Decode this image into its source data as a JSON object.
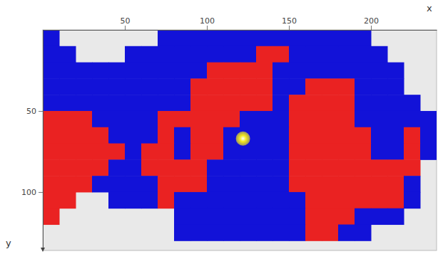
{
  "chart_data": {
    "type": "heatmap",
    "x_label": "x",
    "y_label": "y",
    "x": [
      5,
      15,
      25,
      35,
      45,
      55,
      65,
      75,
      85,
      95,
      105,
      115,
      125,
      135,
      145,
      155,
      165,
      175,
      185,
      195,
      205,
      215,
      225,
      235
    ],
    "y": [
      5,
      15,
      25,
      35,
      45,
      55,
      65,
      75,
      85,
      95,
      105,
      115,
      125
    ],
    "cells": [
      [
        0,
        null,
        null,
        null,
        null,
        null,
        null,
        0,
        0,
        0,
        0,
        0,
        0,
        0,
        0,
        0,
        0,
        0,
        0,
        0,
        null,
        null,
        null,
        null
      ],
      [
        0,
        0,
        null,
        null,
        null,
        0,
        0,
        0,
        0,
        0,
        0,
        0,
        0,
        1,
        1,
        0,
        0,
        0,
        0,
        0,
        0,
        null,
        null,
        null
      ],
      [
        0,
        0,
        0,
        0,
        0,
        0,
        0,
        0,
        0,
        0,
        1,
        1,
        1,
        1,
        0,
        0,
        0,
        0,
        0,
        0,
        0,
        0,
        null,
        null
      ],
      [
        0,
        0,
        0,
        0,
        0,
        0,
        0,
        0,
        0,
        1,
        1,
        1,
        1,
        1,
        0,
        0,
        1,
        1,
        1,
        0,
        0,
        0,
        null,
        null
      ],
      [
        0,
        0,
        0,
        0,
        0,
        0,
        0,
        0,
        0,
        1,
        1,
        1,
        1,
        1,
        0,
        1,
        1,
        1,
        1,
        0,
        0,
        0,
        0,
        null
      ],
      [
        1,
        1,
        1,
        0,
        0,
        0,
        0,
        1,
        1,
        1,
        1,
        1,
        0,
        0,
        0,
        1,
        1,
        1,
        1,
        0,
        0,
        0,
        0,
        0
      ],
      [
        1,
        1,
        1,
        1,
        0,
        0,
        0,
        1,
        0,
        1,
        1,
        0,
        0,
        0,
        0,
        1,
        1,
        1,
        1,
        1,
        0,
        0,
        1,
        0
      ],
      [
        1,
        1,
        1,
        1,
        1,
        0,
        1,
        1,
        0,
        1,
        1,
        0,
        0,
        0,
        0,
        1,
        1,
        1,
        1,
        1,
        0,
        0,
        1,
        0
      ],
      [
        1,
        1,
        1,
        1,
        0,
        0,
        1,
        1,
        1,
        1,
        0,
        0,
        0,
        0,
        0,
        1,
        1,
        1,
        1,
        1,
        1,
        1,
        1,
        null
      ],
      [
        1,
        1,
        1,
        0,
        0,
        0,
        0,
        1,
        1,
        1,
        0,
        0,
        0,
        0,
        0,
        1,
        1,
        1,
        1,
        1,
        1,
        1,
        0,
        null
      ],
      [
        1,
        1,
        null,
        null,
        0,
        0,
        0,
        1,
        0,
        0,
        0,
        0,
        0,
        0,
        0,
        0,
        1,
        1,
        1,
        1,
        1,
        1,
        0,
        null
      ],
      [
        1,
        null,
        null,
        null,
        null,
        null,
        null,
        null,
        0,
        0,
        0,
        0,
        0,
        0,
        0,
        0,
        1,
        1,
        1,
        0,
        0,
        0,
        null,
        null
      ],
      [
        null,
        null,
        null,
        null,
        null,
        null,
        null,
        null,
        0,
        0,
        0,
        0,
        0,
        0,
        0,
        0,
        1,
        1,
        0,
        0,
        null,
        null,
        null,
        null
      ]
    ],
    "colors": [
      "#1212d8",
      "#ea2222"
    ],
    "highlight": {
      "x": 122,
      "y": 67,
      "color": "#f2e81c"
    },
    "xlim": [
      0,
      240
    ],
    "ylim": [
      0,
      136
    ],
    "xticks": [
      50,
      100,
      150,
      200
    ],
    "yticks": [
      50,
      100
    ]
  }
}
